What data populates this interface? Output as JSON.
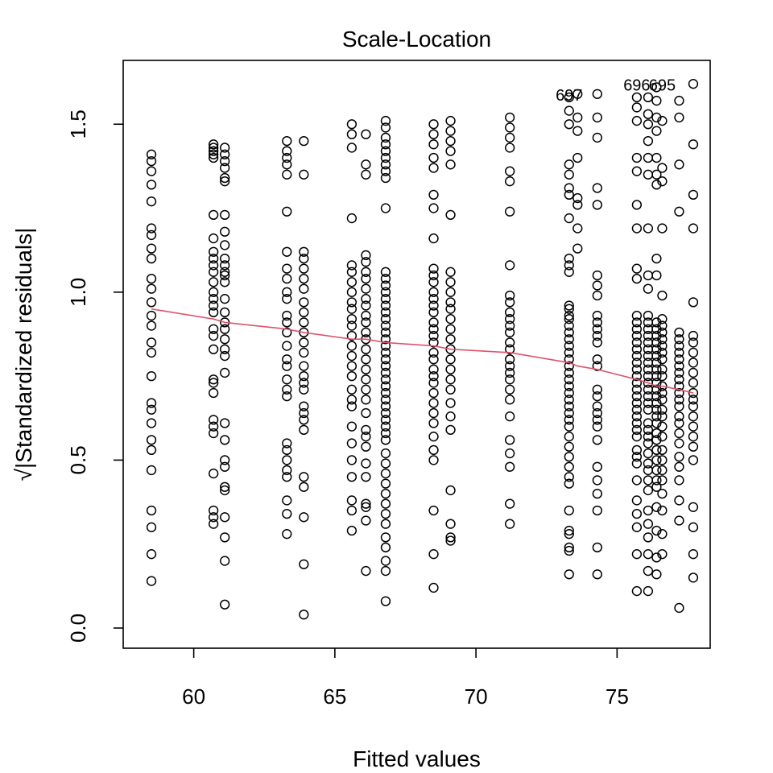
{
  "chart_data": {
    "type": "scatter",
    "title": "Scale-Location",
    "xlabel": "Fitted values",
    "ylabel_radical": "√",
    "ylabel": "|Standardized residuals|",
    "xlim": [
      57.5,
      78.3
    ],
    "ylim": [
      -0.06,
      1.69
    ],
    "xticks": [
      60,
      65,
      70,
      75
    ],
    "yticks": [
      0.0,
      0.5,
      1.0,
      1.5
    ],
    "xtick_labels": [
      "60",
      "65",
      "70",
      "75"
    ],
    "ytick_labels": [
      "0.0",
      "0.5",
      "1.0",
      "1.5"
    ],
    "point_style": "open-circle",
    "smooth_color": "#DF536B",
    "groups": [
      {
        "x": 58.5,
        "y": [
          1.41,
          1.39,
          1.36,
          1.32,
          1.27,
          1.19,
          1.17,
          1.13,
          1.1,
          1.04,
          1.01,
          0.97,
          0.93,
          0.9,
          0.85,
          0.82,
          0.75,
          0.67,
          0.65,
          0.61,
          0.56,
          0.53,
          0.47,
          0.35,
          0.3,
          0.22,
          0.14
        ]
      },
      {
        "x": 60.7,
        "y": [
          1.44,
          1.43,
          1.42,
          1.41,
          1.4,
          1.23,
          1.16,
          1.12,
          1.1,
          1.08,
          1.06,
          1.03,
          1.0,
          0.98,
          0.96,
          0.94,
          0.89,
          0.87,
          0.83,
          0.74,
          0.73,
          0.7,
          0.62,
          0.6,
          0.58,
          0.46,
          0.35,
          0.33,
          0.31
        ]
      },
      {
        "x": 61.1,
        "y": [
          1.43,
          1.41,
          1.39,
          1.37,
          1.34,
          1.33,
          1.23,
          1.18,
          1.14,
          1.1,
          1.08,
          1.06,
          1.05,
          1.03,
          0.98,
          0.94,
          0.91,
          0.89,
          0.86,
          0.83,
          0.81,
          0.76,
          0.61,
          0.56,
          0.5,
          0.48,
          0.42,
          0.41,
          0.33,
          0.27,
          0.2,
          0.07
        ]
      },
      {
        "x": 63.3,
        "y": [
          1.45,
          1.42,
          1.4,
          1.38,
          1.35,
          1.24,
          1.12,
          1.07,
          1.04,
          1.0,
          0.98,
          0.93,
          0.91,
          0.88,
          0.84,
          0.8,
          0.78,
          0.74,
          0.71,
          0.69,
          0.55,
          0.53,
          0.5,
          0.47,
          0.45,
          0.38,
          0.34,
          0.28
        ]
      },
      {
        "x": 63.9,
        "y": [
          1.45,
          1.35,
          1.12,
          1.1,
          1.07,
          1.04,
          1.01,
          0.97,
          0.94,
          0.91,
          0.88,
          0.85,
          0.82,
          0.78,
          0.75,
          0.73,
          0.71,
          0.66,
          0.64,
          0.62,
          0.59,
          0.45,
          0.42,
          0.33,
          0.19,
          0.04
        ]
      },
      {
        "x": 65.6,
        "y": [
          1.5,
          1.47,
          1.43,
          1.22,
          1.08,
          1.06,
          1.03,
          1.0,
          0.97,
          0.95,
          0.92,
          0.9,
          0.87,
          0.84,
          0.81,
          0.78,
          0.75,
          0.71,
          0.68,
          0.66,
          0.6,
          0.55,
          0.5,
          0.45,
          0.38,
          0.35,
          0.29
        ]
      },
      {
        "x": 66.1,
        "y": [
          1.47,
          1.38,
          1.35,
          1.11,
          1.09,
          1.06,
          1.04,
          1.01,
          0.98,
          0.96,
          0.93,
          0.91,
          0.88,
          0.86,
          0.83,
          0.8,
          0.77,
          0.74,
          0.71,
          0.68,
          0.64,
          0.59,
          0.57,
          0.54,
          0.49,
          0.45,
          0.37,
          0.36,
          0.32,
          0.17
        ]
      },
      {
        "x": 66.8,
        "y": [
          1.51,
          1.49,
          1.46,
          1.44,
          1.42,
          1.4,
          1.38,
          1.36,
          1.34,
          1.25,
          1.06,
          1.04,
          1.02,
          1.0,
          0.98,
          0.96,
          0.94,
          0.92,
          0.9,
          0.88,
          0.86,
          0.84,
          0.82,
          0.8,
          0.78,
          0.76,
          0.74,
          0.72,
          0.7,
          0.68,
          0.66,
          0.64,
          0.62,
          0.6,
          0.58,
          0.56,
          0.52,
          0.49,
          0.46,
          0.43,
          0.4,
          0.37,
          0.34,
          0.31,
          0.27,
          0.24,
          0.2,
          0.17,
          0.08
        ]
      },
      {
        "x": 68.5,
        "y": [
          1.5,
          1.47,
          1.44,
          1.4,
          1.37,
          1.29,
          1.25,
          1.16,
          1.07,
          1.05,
          1.03,
          1.0,
          0.98,
          0.96,
          0.94,
          0.91,
          0.89,
          0.87,
          0.85,
          0.82,
          0.8,
          0.77,
          0.75,
          0.73,
          0.7,
          0.67,
          0.64,
          0.61,
          0.57,
          0.53,
          0.5,
          0.35,
          0.22,
          0.12
        ]
      },
      {
        "x": 69.1,
        "y": [
          1.51,
          1.48,
          1.45,
          1.42,
          1.38,
          1.23,
          1.06,
          1.03,
          1.0,
          0.97,
          0.95,
          0.92,
          0.89,
          0.86,
          0.83,
          0.8,
          0.77,
          0.74,
          0.71,
          0.67,
          0.63,
          0.59,
          0.41,
          0.31,
          0.27,
          0.26
        ]
      },
      {
        "x": 71.2,
        "y": [
          1.52,
          1.49,
          1.46,
          1.43,
          1.36,
          1.33,
          1.24,
          1.08,
          0.99,
          0.97,
          0.94,
          0.92,
          0.9,
          0.88,
          0.85,
          0.83,
          0.8,
          0.78,
          0.76,
          0.74,
          0.71,
          0.68,
          0.63,
          0.56,
          0.52,
          0.48,
          0.37,
          0.31
        ]
      },
      {
        "x": 73.3,
        "y": [
          1.58,
          1.54,
          1.5,
          1.38,
          1.35,
          1.31,
          1.29,
          1.22,
          1.1,
          1.08,
          1.06,
          0.96,
          0.95,
          0.93,
          0.92,
          0.9,
          0.88,
          0.86,
          0.84,
          0.82,
          0.8,
          0.78,
          0.76,
          0.74,
          0.72,
          0.7,
          0.68,
          0.66,
          0.64,
          0.62,
          0.6,
          0.57,
          0.54,
          0.51,
          0.48,
          0.45,
          0.43,
          0.35,
          0.29,
          0.28,
          0.24,
          0.23,
          0.16
        ]
      },
      {
        "x": 73.6,
        "y": [
          1.59,
          1.52,
          1.48,
          1.4,
          1.28,
          1.26,
          1.19,
          1.13
        ]
      },
      {
        "x": 74.3,
        "y": [
          1.59,
          1.52,
          1.46,
          1.31,
          1.26,
          1.05,
          1.02,
          0.99,
          0.93,
          0.91,
          0.89,
          0.87,
          0.85,
          0.8,
          0.78,
          0.71,
          0.69,
          0.66,
          0.64,
          0.62,
          0.6,
          0.56,
          0.48,
          0.44,
          0.4,
          0.35,
          0.24,
          0.16
        ]
      },
      {
        "x": 75.7,
        "y": [
          1.58,
          1.55,
          1.51,
          1.4,
          1.36,
          1.26,
          1.19,
          1.07,
          1.04,
          0.93,
          0.91,
          0.89,
          0.87,
          0.85,
          0.83,
          0.81,
          0.79,
          0.77,
          0.75,
          0.73,
          0.71,
          0.69,
          0.67,
          0.65,
          0.63,
          0.61,
          0.59,
          0.57,
          0.53,
          0.51,
          0.49,
          0.44,
          0.38,
          0.34,
          0.3,
          0.22,
          0.11
        ]
      },
      {
        "x": 76.1,
        "y": [
          1.58,
          1.53,
          1.5,
          1.45,
          1.4,
          1.35,
          1.19,
          1.05,
          1.01,
          0.93,
          0.91,
          0.89,
          0.87,
          0.85,
          0.83,
          0.81,
          0.79,
          0.77,
          0.75,
          0.73,
          0.71,
          0.69,
          0.67,
          0.65,
          0.61,
          0.59,
          0.57,
          0.55,
          0.52,
          0.49,
          0.47,
          0.44,
          0.41,
          0.35,
          0.31,
          0.27,
          0.22,
          0.17,
          0.11
        ]
      },
      {
        "x": 76.4,
        "y": [
          1.61,
          1.57,
          1.52,
          1.48,
          1.4,
          1.35,
          1.32,
          1.1,
          1.05,
          0.91,
          0.89,
          0.87,
          0.85,
          0.83,
          0.81,
          0.79,
          0.77,
          0.75,
          0.73,
          0.71,
          0.69,
          0.67,
          0.65,
          0.63,
          0.61,
          0.58,
          0.56,
          0.53,
          0.5,
          0.47,
          0.44,
          0.42,
          0.36,
          0.29,
          0.21,
          0.16
        ]
      },
      {
        "x": 76.6,
        "y": [
          1.51,
          1.37,
          1.33,
          1.19,
          0.99,
          0.92,
          0.9,
          0.88,
          0.86,
          0.84,
          0.82,
          0.8,
          0.77,
          0.75,
          0.72,
          0.7,
          0.68,
          0.65,
          0.63,
          0.6,
          0.57,
          0.53,
          0.5,
          0.47,
          0.44,
          0.4,
          0.35,
          0.28,
          0.22
        ]
      },
      {
        "x": 77.2,
        "y": [
          1.57,
          1.52,
          1.38,
          1.24,
          0.88,
          0.86,
          0.84,
          0.82,
          0.8,
          0.78,
          0.76,
          0.74,
          0.72,
          0.7,
          0.68,
          0.66,
          0.63,
          0.61,
          0.58,
          0.55,
          0.51,
          0.48,
          0.44,
          0.38,
          0.32,
          0.06
        ]
      },
      {
        "x": 77.7,
        "y": [
          1.62,
          1.44,
          1.29,
          1.19,
          0.97,
          0.87,
          0.85,
          0.82,
          0.79,
          0.76,
          0.73,
          0.7,
          0.68,
          0.66,
          0.63,
          0.6,
          0.57,
          0.54,
          0.5,
          0.36,
          0.3,
          0.22,
          0.15
        ]
      }
    ],
    "smooth_line": {
      "x": [
        58.5,
        60.7,
        61.1,
        63.3,
        63.9,
        65.6,
        66.1,
        66.8,
        68.5,
        69.1,
        71.2,
        73.3,
        73.6,
        74.3,
        75.7,
        76.1,
        76.4,
        76.6,
        77.2,
        77.7
      ],
      "y": [
        0.95,
        0.92,
        0.91,
        0.89,
        0.88,
        0.86,
        0.86,
        0.85,
        0.84,
        0.83,
        0.82,
        0.79,
        0.78,
        0.77,
        0.74,
        0.73,
        0.72,
        0.72,
        0.71,
        0.7
      ]
    },
    "annotations": [
      {
        "text": "697",
        "x": 73.3,
        "y": 1.58
      },
      {
        "text": "696",
        "x": 75.7,
        "y": 1.61
      },
      {
        "text": "695",
        "x": 76.6,
        "y": 1.61
      }
    ]
  }
}
